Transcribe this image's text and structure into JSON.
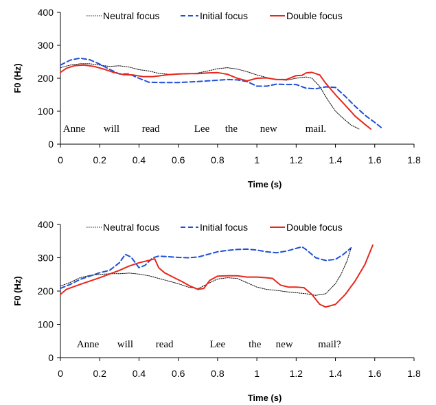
{
  "chart_data": [
    {
      "type": "line",
      "xlabel": "Time (s)",
      "ylabel": "F0 (Hz)",
      "xlim": [
        0,
        1.8
      ],
      "ylim": [
        0,
        400
      ],
      "xticks": [
        "0",
        "0.2",
        "0.4",
        "0.6",
        "0.8",
        "1",
        "1.2",
        "1.4",
        "1.6",
        "1.8"
      ],
      "yticks": [
        "0",
        "100",
        "200",
        "300",
        "400"
      ],
      "legend_position": "top",
      "words": [
        {
          "text": "Anne",
          "t": 0.07
        },
        {
          "text": "will",
          "t": 0.26
        },
        {
          "text": "read",
          "t": 0.46
        },
        {
          "text": "Lee",
          "t": 0.72
        },
        {
          "text": "the",
          "t": 0.87
        },
        {
          "text": "new",
          "t": 1.06
        },
        {
          "text": "mail.",
          "t": 1.3
        }
      ],
      "series": [
        {
          "name": "Neutral focus",
          "color": "#000000",
          "style": "dotted",
          "points": [
            [
              0,
              232
            ],
            [
              0.05,
              240
            ],
            [
              0.1,
              244
            ],
            [
              0.15,
              244
            ],
            [
              0.2,
              240
            ],
            [
              0.25,
              236
            ],
            [
              0.3,
              238
            ],
            [
              0.35,
              234
            ],
            [
              0.4,
              226
            ],
            [
              0.45,
              222
            ],
            [
              0.5,
              215
            ],
            [
              0.55,
              212
            ],
            [
              0.6,
              212
            ],
            [
              0.65,
              213
            ],
            [
              0.7,
              216
            ],
            [
              0.75,
              222
            ],
            [
              0.8,
              229
            ],
            [
              0.85,
              232
            ],
            [
              0.9,
              228
            ],
            [
              0.95,
              220
            ],
            [
              1.0,
              210
            ],
            [
              1.05,
              202
            ],
            [
              1.1,
              196
            ],
            [
              1.15,
              194
            ],
            [
              1.2,
              200
            ],
            [
              1.25,
              204
            ],
            [
              1.28,
              200
            ],
            [
              1.32,
              175
            ],
            [
              1.36,
              135
            ],
            [
              1.4,
              100
            ],
            [
              1.44,
              78
            ],
            [
              1.48,
              58
            ],
            [
              1.52,
              46
            ]
          ]
        },
        {
          "name": "Initial focus",
          "color": "#1f4fd8",
          "style": "dashed",
          "points": [
            [
              0,
              240
            ],
            [
              0.05,
              255
            ],
            [
              0.1,
              261
            ],
            [
              0.15,
              256
            ],
            [
              0.2,
              243
            ],
            [
              0.25,
              227
            ],
            [
              0.3,
              213
            ],
            [
              0.35,
              213
            ],
            [
              0.4,
              200
            ],
            [
              0.45,
              188
            ],
            [
              0.5,
              187
            ],
            [
              0.6,
              187
            ],
            [
              0.7,
              190
            ],
            [
              0.8,
              194
            ],
            [
              0.85,
              196
            ],
            [
              0.9,
              195
            ],
            [
              0.95,
              190
            ],
            [
              1.0,
              176
            ],
            [
              1.05,
              176
            ],
            [
              1.1,
              182
            ],
            [
              1.15,
              181
            ],
            [
              1.2,
              181
            ],
            [
              1.25,
              170
            ],
            [
              1.3,
              168
            ],
            [
              1.35,
              174
            ],
            [
              1.4,
              172
            ],
            [
              1.45,
              145
            ],
            [
              1.5,
              115
            ],
            [
              1.55,
              88
            ],
            [
              1.6,
              66
            ],
            [
              1.64,
              47
            ]
          ]
        },
        {
          "name": "Double focus",
          "color": "#e8261c",
          "style": "solid",
          "points": [
            [
              0,
              218
            ],
            [
              0.03,
              230
            ],
            [
              0.07,
              238
            ],
            [
              0.12,
              240
            ],
            [
              0.17,
              236
            ],
            [
              0.22,
              228
            ],
            [
              0.27,
              218
            ],
            [
              0.32,
              211
            ],
            [
              0.37,
              210
            ],
            [
              0.42,
              205
            ],
            [
              0.47,
              205
            ],
            [
              0.5,
              207
            ],
            [
              0.55,
              211
            ],
            [
              0.6,
              213
            ],
            [
              0.65,
              214
            ],
            [
              0.7,
              214
            ],
            [
              0.75,
              216
            ],
            [
              0.8,
              217
            ],
            [
              0.85,
              212
            ],
            [
              0.9,
              200
            ],
            [
              0.95,
              192
            ],
            [
              1.0,
              200
            ],
            [
              1.05,
              201
            ],
            [
              1.1,
              196
            ],
            [
              1.15,
              196
            ],
            [
              1.2,
              208
            ],
            [
              1.23,
              209
            ],
            [
              1.25,
              216
            ],
            [
              1.28,
              218
            ],
            [
              1.32,
              210
            ],
            [
              1.35,
              185
            ],
            [
              1.4,
              150
            ],
            [
              1.45,
              118
            ],
            [
              1.5,
              85
            ],
            [
              1.55,
              60
            ],
            [
              1.58,
              46
            ]
          ]
        }
      ]
    },
    {
      "type": "line",
      "xlabel": "Time (s)",
      "ylabel": "F0 (Hz)",
      "xlim": [
        0,
        1.8
      ],
      "ylim": [
        0,
        400
      ],
      "xticks": [
        "0",
        "0.2",
        "0.4",
        "0.6",
        "0.8",
        "1",
        "1.2",
        "1.4",
        "1.6",
        "1.8"
      ],
      "yticks": [
        "0",
        "100",
        "200",
        "300",
        "400"
      ],
      "legend_position": "top",
      "words": [
        {
          "text": "Anne",
          "t": 0.14
        },
        {
          "text": "will",
          "t": 0.33
        },
        {
          "text": "read",
          "t": 0.53
        },
        {
          "text": "Lee",
          "t": 0.8
        },
        {
          "text": "the",
          "t": 0.99
        },
        {
          "text": "new",
          "t": 1.14
        },
        {
          "text": "mail?",
          "t": 1.37
        }
      ],
      "series": [
        {
          "name": "Neutral focus",
          "color": "#000000",
          "style": "dotted",
          "points": [
            [
              0,
              215
            ],
            [
              0.05,
              226
            ],
            [
              0.1,
              240
            ],
            [
              0.15,
              247
            ],
            [
              0.2,
              250
            ],
            [
              0.25,
              252
            ],
            [
              0.3,
              252
            ],
            [
              0.35,
              254
            ],
            [
              0.4,
              251
            ],
            [
              0.45,
              246
            ],
            [
              0.5,
              238
            ],
            [
              0.55,
              230
            ],
            [
              0.6,
              222
            ],
            [
              0.65,
              212
            ],
            [
              0.7,
              207
            ],
            [
              0.75,
              222
            ],
            [
              0.8,
              236
            ],
            [
              0.85,
              240
            ],
            [
              0.9,
              238
            ],
            [
              0.95,
              225
            ],
            [
              1.0,
              212
            ],
            [
              1.05,
              205
            ],
            [
              1.1,
              202
            ],
            [
              1.15,
              198
            ],
            [
              1.2,
              195
            ],
            [
              1.25,
              192
            ],
            [
              1.3,
              187
            ],
            [
              1.35,
              192
            ],
            [
              1.4,
              222
            ],
            [
              1.43,
              252
            ],
            [
              1.46,
              292
            ],
            [
              1.48,
              330
            ]
          ]
        },
        {
          "name": "Initial focus",
          "color": "#1f4fd8",
          "style": "dashed",
          "points": [
            [
              0,
              208
            ],
            [
              0.05,
              220
            ],
            [
              0.1,
              235
            ],
            [
              0.15,
              245
            ],
            [
              0.2,
              255
            ],
            [
              0.25,
              262
            ],
            [
              0.3,
              285
            ],
            [
              0.33,
              310
            ],
            [
              0.36,
              302
            ],
            [
              0.4,
              270
            ],
            [
              0.43,
              277
            ],
            [
              0.47,
              300
            ],
            [
              0.5,
              305
            ],
            [
              0.55,
              303
            ],
            [
              0.6,
              301
            ],
            [
              0.65,
              300
            ],
            [
              0.7,
              302
            ],
            [
              0.75,
              310
            ],
            [
              0.8,
              318
            ],
            [
              0.85,
              322
            ],
            [
              0.9,
              325
            ],
            [
              0.95,
              326
            ],
            [
              1.0,
              323
            ],
            [
              1.05,
              318
            ],
            [
              1.1,
              315
            ],
            [
              1.15,
              320
            ],
            [
              1.2,
              328
            ],
            [
              1.23,
              333
            ],
            [
              1.25,
              325
            ],
            [
              1.3,
              300
            ],
            [
              1.35,
              292
            ],
            [
              1.4,
              295
            ],
            [
              1.44,
              310
            ],
            [
              1.48,
              330
            ]
          ]
        },
        {
          "name": "Double focus",
          "color": "#e8261c",
          "style": "solid",
          "points": [
            [
              0,
              190
            ],
            [
              0.03,
              205
            ],
            [
              0.1,
              220
            ],
            [
              0.2,
              240
            ],
            [
              0.3,
              262
            ],
            [
              0.35,
              275
            ],
            [
              0.4,
              285
            ],
            [
              0.45,
              292
            ],
            [
              0.48,
              297
            ],
            [
              0.5,
              270
            ],
            [
              0.53,
              255
            ],
            [
              0.58,
              240
            ],
            [
              0.62,
              228
            ],
            [
              0.66,
              215
            ],
            [
              0.7,
              205
            ],
            [
              0.73,
              208
            ],
            [
              0.76,
              232
            ],
            [
              0.8,
              245
            ],
            [
              0.85,
              246
            ],
            [
              0.9,
              246
            ],
            [
              0.95,
              242
            ],
            [
              1.0,
              242
            ],
            [
              1.05,
              240
            ],
            [
              1.08,
              238
            ],
            [
              1.12,
              218
            ],
            [
              1.16,
              212
            ],
            [
              1.2,
              212
            ],
            [
              1.24,
              210
            ],
            [
              1.28,
              190
            ],
            [
              1.32,
              160
            ],
            [
              1.35,
              152
            ],
            [
              1.4,
              160
            ],
            [
              1.45,
              190
            ],
            [
              1.5,
              230
            ],
            [
              1.55,
              280
            ],
            [
              1.59,
              338
            ]
          ]
        }
      ]
    }
  ]
}
